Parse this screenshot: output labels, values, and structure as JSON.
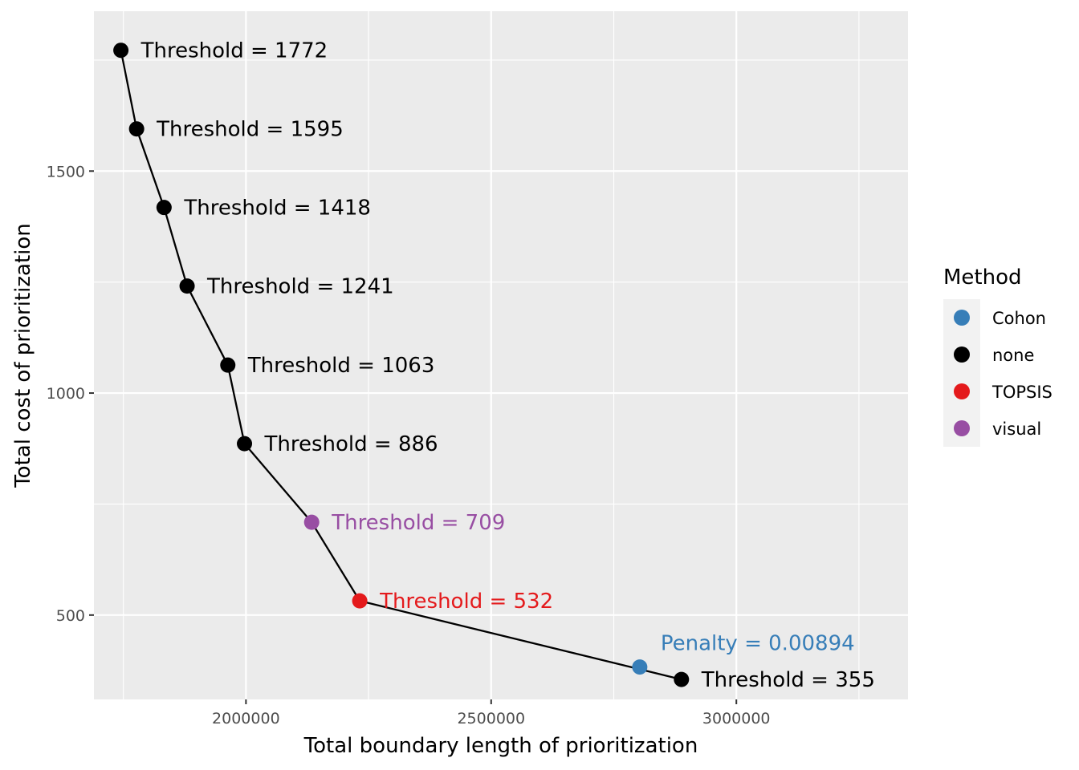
{
  "chart_data": {
    "type": "scatter",
    "title": "",
    "xlabel": "Total boundary length of prioritization",
    "ylabel": "Total cost of prioritization",
    "xlim": [
      1690000,
      3350000
    ],
    "ylim": [
      310,
      1860
    ],
    "x_ticks": [
      2000000,
      2500000,
      3000000
    ],
    "x_tick_labels": [
      "2000000",
      "2500000",
      "3000000"
    ],
    "x_minor_ticks": [
      1750000,
      2250000,
      2750000,
      3250000
    ],
    "y_ticks": [
      500,
      1000,
      1500
    ],
    "y_tick_labels": [
      "500",
      "1000",
      "1500"
    ],
    "y_minor_ticks": [
      750,
      1250,
      1750
    ],
    "grid": true,
    "legend": {
      "title": "Method",
      "position": "right",
      "entries": [
        {
          "name": "Cohon",
          "color": "#377EB8"
        },
        {
          "name": "none",
          "color": "#000000"
        },
        {
          "name": "TOPSIS",
          "color": "#E41A1C"
        },
        {
          "name": "visual",
          "color": "#984EA3"
        }
      ]
    },
    "line": {
      "color": "#000000",
      "x": [
        1745000,
        1777000,
        1833000,
        1880000,
        1963000,
        1997000,
        2134000,
        2232000,
        2888000
      ],
      "y": [
        1772,
        1595,
        1418,
        1241,
        1063,
        886,
        709,
        532,
        355
      ]
    },
    "points": [
      {
        "x": 1745000,
        "y": 1772,
        "method": "none",
        "label": "Threshold = 1772"
      },
      {
        "x": 1777000,
        "y": 1595,
        "method": "none",
        "label": "Threshold = 1595"
      },
      {
        "x": 1833000,
        "y": 1418,
        "method": "none",
        "label": "Threshold = 1418"
      },
      {
        "x": 1880000,
        "y": 1241,
        "method": "none",
        "label": "Threshold = 1241"
      },
      {
        "x": 1963000,
        "y": 1063,
        "method": "none",
        "label": "Threshold = 1063"
      },
      {
        "x": 1997000,
        "y": 886,
        "method": "none",
        "label": "Threshold = 886"
      },
      {
        "x": 2134000,
        "y": 709,
        "method": "visual",
        "label": "Threshold = 709"
      },
      {
        "x": 2232000,
        "y": 532,
        "method": "TOPSIS",
        "label": "Threshold = 532"
      },
      {
        "x": 2888000,
        "y": 355,
        "method": "none",
        "label": "Threshold = 355"
      },
      {
        "x": 2803000,
        "y": 383,
        "method": "Cohon",
        "label": "Penalty = 0.00894",
        "label_above": true
      }
    ]
  }
}
